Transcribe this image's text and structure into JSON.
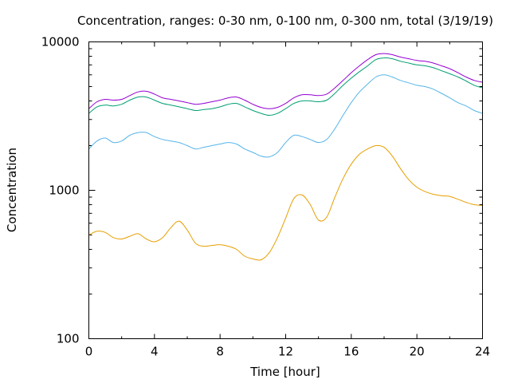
{
  "chart_data": {
    "type": "line",
    "title": "Concentration, ranges: 0-30 nm, 0-100 nm, 0-300 nm, total (3/19/19)",
    "xlabel": "Time [hour]",
    "ylabel": "Concentration",
    "xlim": [
      0,
      24
    ],
    "ylim": [
      100,
      10000
    ],
    "yscale": "log",
    "grid": false,
    "legend": "none",
    "x_ticks": [
      0,
      4,
      8,
      12,
      16,
      20,
      24
    ],
    "x_tick_labels": [
      "0",
      "4",
      "8",
      "12",
      "16",
      "20",
      "24"
    ],
    "y_ticks": [
      100,
      1000,
      10000
    ],
    "y_tick_labels": [
      "100",
      "1000",
      "10000"
    ],
    "x": [
      0,
      0.5,
      1,
      1.5,
      2,
      2.5,
      3,
      3.5,
      4,
      4.5,
      5,
      5.5,
      6,
      6.5,
      7,
      7.5,
      8,
      8.5,
      9,
      9.5,
      10,
      10.5,
      11,
      11.5,
      12,
      12.5,
      13,
      13.5,
      14,
      14.5,
      15,
      15.5,
      16,
      16.5,
      17,
      17.5,
      18,
      18.5,
      19,
      19.5,
      20,
      20.5,
      21,
      21.5,
      22,
      22.5,
      23,
      23.5,
      24
    ],
    "series": [
      {
        "color": "#e69f00",
        "values": [
          500,
          530,
          520,
          480,
          470,
          490,
          510,
          470,
          450,
          480,
          560,
          620,
          540,
          440,
          420,
          425,
          430,
          420,
          400,
          360,
          345,
          340,
          380,
          480,
          650,
          880,
          930,
          800,
          630,
          660,
          900,
          1200,
          1500,
          1750,
          1900,
          2000,
          1950,
          1700,
          1400,
          1180,
          1050,
          980,
          940,
          920,
          910,
          870,
          830,
          800,
          790
        ]
      },
      {
        "color": "#56b4e9",
        "values": [
          1900,
          2150,
          2250,
          2100,
          2150,
          2350,
          2450,
          2450,
          2300,
          2200,
          2150,
          2100,
          2000,
          1900,
          1950,
          2000,
          2050,
          2100,
          2050,
          1900,
          1800,
          1700,
          1680,
          1800,
          2100,
          2350,
          2300,
          2200,
          2100,
          2200,
          2600,
          3200,
          3900,
          4600,
          5200,
          5800,
          6000,
          5800,
          5500,
          5300,
          5100,
          5000,
          4800,
          4500,
          4200,
          3900,
          3700,
          3450,
          3300
        ]
      },
      {
        "color": "#009e73",
        "values": [
          3300,
          3650,
          3750,
          3700,
          3800,
          4050,
          4250,
          4250,
          4050,
          3850,
          3750,
          3650,
          3550,
          3450,
          3500,
          3550,
          3650,
          3800,
          3850,
          3650,
          3450,
          3300,
          3200,
          3300,
          3550,
          3850,
          4000,
          4000,
          3950,
          4050,
          4500,
          5100,
          5700,
          6300,
          6900,
          7600,
          7800,
          7700,
          7400,
          7200,
          7000,
          6900,
          6700,
          6400,
          6100,
          5800,
          5450,
          5100,
          4900
        ]
      },
      {
        "color": "#9400d3",
        "values": [
          3550,
          3950,
          4100,
          4050,
          4100,
          4350,
          4600,
          4650,
          4450,
          4200,
          4100,
          4000,
          3900,
          3800,
          3850,
          3950,
          4050,
          4200,
          4250,
          4050,
          3800,
          3620,
          3550,
          3620,
          3850,
          4200,
          4400,
          4400,
          4350,
          4450,
          4900,
          5500,
          6200,
          6900,
          7600,
          8200,
          8350,
          8200,
          7900,
          7700,
          7500,
          7400,
          7200,
          6900,
          6600,
          6200,
          5800,
          5500,
          5350
        ]
      }
    ]
  }
}
